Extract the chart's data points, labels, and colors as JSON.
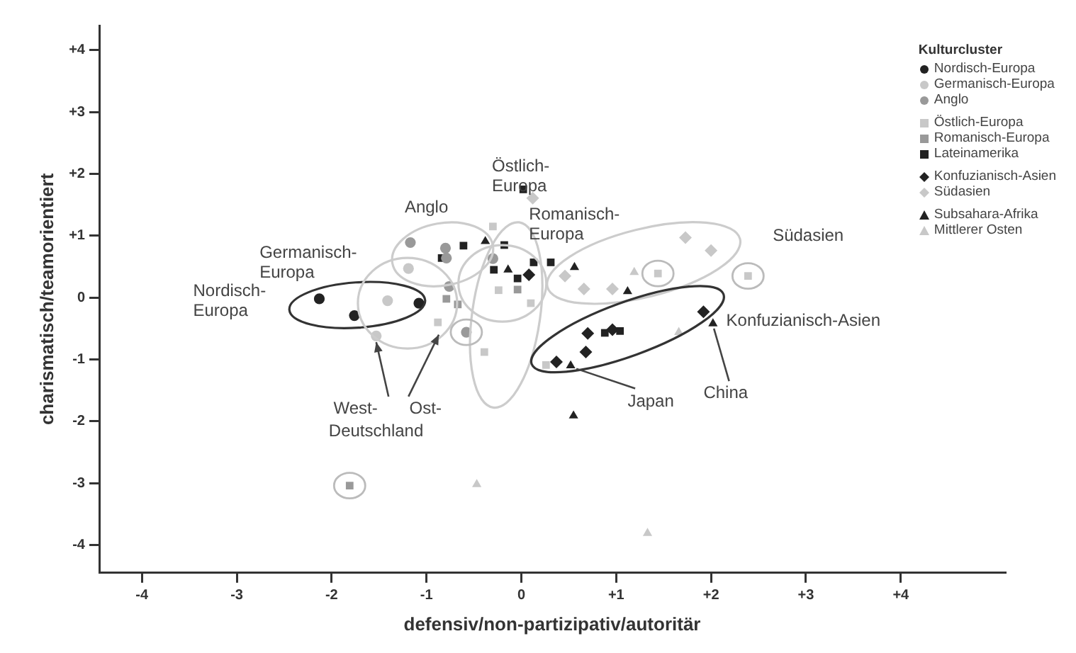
{
  "chart_data": {
    "type": "scatter",
    "xlabel": "defensiv/non-partizipativ/autoritär",
    "ylabel": "charismatisch/teamorientiert",
    "legend_title": "Kulturcluster",
    "xlim": [
      -4.45,
      5.1
    ],
    "ylim": [
      -4.45,
      4.4
    ],
    "xticks": [
      {
        "value": -4,
        "label": "-4"
      },
      {
        "value": -3,
        "label": "-3"
      },
      {
        "value": -2,
        "label": "-2"
      },
      {
        "value": -1,
        "label": "-1"
      },
      0,
      {
        "value": 1,
        "label": "+1"
      },
      {
        "value": 2,
        "label": "+2"
      },
      {
        "value": 3,
        "label": "+3"
      },
      {
        "value": 4,
        "label": "+4"
      }
    ],
    "yticks": [
      {
        "value": -4,
        "label": "-4"
      },
      {
        "value": -3,
        "label": "-3"
      },
      {
        "value": -2,
        "label": "-2"
      },
      {
        "value": -1,
        "label": "-1"
      },
      0,
      {
        "value": 1,
        "label": "+1"
      },
      {
        "value": 2,
        "label": "+2"
      },
      {
        "value": 3,
        "label": "+3"
      },
      {
        "value": 4,
        "label": "+4"
      }
    ],
    "grid": false,
    "legend": "top right",
    "series": [
      {
        "name": "Nordisch-Europa",
        "color": "#222222",
        "marker": "circle",
        "x": [
          -2.13,
          -1.76,
          -1.08
        ],
        "values": [
          -0.02,
          -0.29,
          -0.09
        ]
      },
      {
        "name": "Germanisch-Europa",
        "color": "#c8c8c8",
        "marker": "circle",
        "x": [
          -1.41,
          -1.53,
          -1.19
        ],
        "values": [
          -0.05,
          -0.62,
          0.47
        ]
      },
      {
        "name": "Anglo",
        "color": "#999999",
        "marker": "circle",
        "x": [
          -1.17,
          -0.8,
          -0.79,
          -0.76,
          -0.58,
          -0.3
        ],
        "values": [
          0.89,
          0.8,
          0.64,
          0.18,
          -0.56,
          0.63
        ]
      },
      {
        "name": "Östlich-Europa",
        "color": "#c8c8c8",
        "marker": "square",
        "x": [
          -0.3,
          -0.24,
          -0.39,
          -0.88,
          0.1,
          0.26,
          1.44,
          2.39
        ],
        "values": [
          1.15,
          0.12,
          -0.88,
          -0.4,
          -0.09,
          -1.09,
          0.39,
          0.35
        ]
      },
      {
        "name": "Romanisch-Europa",
        "color": "#999999",
        "marker": "square",
        "x": [
          -0.79,
          -0.67,
          -0.04,
          -1.81
        ],
        "values": [
          -0.02,
          -0.11,
          0.13,
          -3.04
        ]
      },
      {
        "name": "Lateinamerika",
        "color": "#222222",
        "marker": "square",
        "x": [
          -0.61,
          -0.84,
          -0.18,
          -0.29,
          0.02,
          0.13,
          0.31,
          -0.04,
          0.88,
          1.04
        ],
        "values": [
          0.84,
          0.64,
          0.85,
          0.45,
          1.75,
          0.57,
          0.57,
          0.31,
          -0.57,
          -0.54
        ]
      },
      {
        "name": "Konfuzianisch-Asien",
        "color": "#222222",
        "marker": "diamond",
        "x": [
          0.08,
          1.92,
          0.7,
          0.68,
          0.37,
          0.96
        ],
        "values": [
          0.37,
          -0.23,
          -0.58,
          -0.88,
          -1.04,
          -0.52
        ]
      },
      {
        "name": "Südasien",
        "color": "#c8c8c8",
        "marker": "diamond",
        "x": [
          0.12,
          1.73,
          2.0,
          0.46,
          0.66,
          0.96
        ],
        "values": [
          1.61,
          0.97,
          0.76,
          0.35,
          0.14,
          0.14
        ]
      },
      {
        "name": "Subsahara-Afrika",
        "color": "#222222",
        "marker": "triangle",
        "x": [
          -0.38,
          -0.14,
          0.56,
          1.12,
          2.02,
          0.52,
          0.55
        ],
        "values": [
          0.91,
          0.45,
          0.49,
          0.1,
          -0.42,
          -1.1,
          -1.91
        ]
      },
      {
        "name": "Mittlerer Osten",
        "color": "#c8c8c8",
        "marker": "triangle",
        "x": [
          1.19,
          1.66,
          -0.47,
          1.33
        ],
        "values": [
          0.41,
          -0.56,
          -3.02,
          -3.81
        ]
      }
    ],
    "annotations": [
      "Nordisch-\nEuropa",
      "Germanisch-\nEuropa",
      "Anglo",
      "Östlich-\nEuropa",
      "Romanisch-\nEuropa",
      "Südasien",
      "Konfuzianisch-Asien",
      {
        "text": "West-",
        "x": -1.53,
        "y": -0.62
      },
      {
        "text": "Ost-",
        "x": -0.88,
        "y": -0.4
      },
      "Deutschland",
      {
        "text": "Japan",
        "x": 0.52,
        "y": -1.1
      },
      {
        "text": "China",
        "x": 2.02,
        "y": -0.42
      }
    ]
  }
}
